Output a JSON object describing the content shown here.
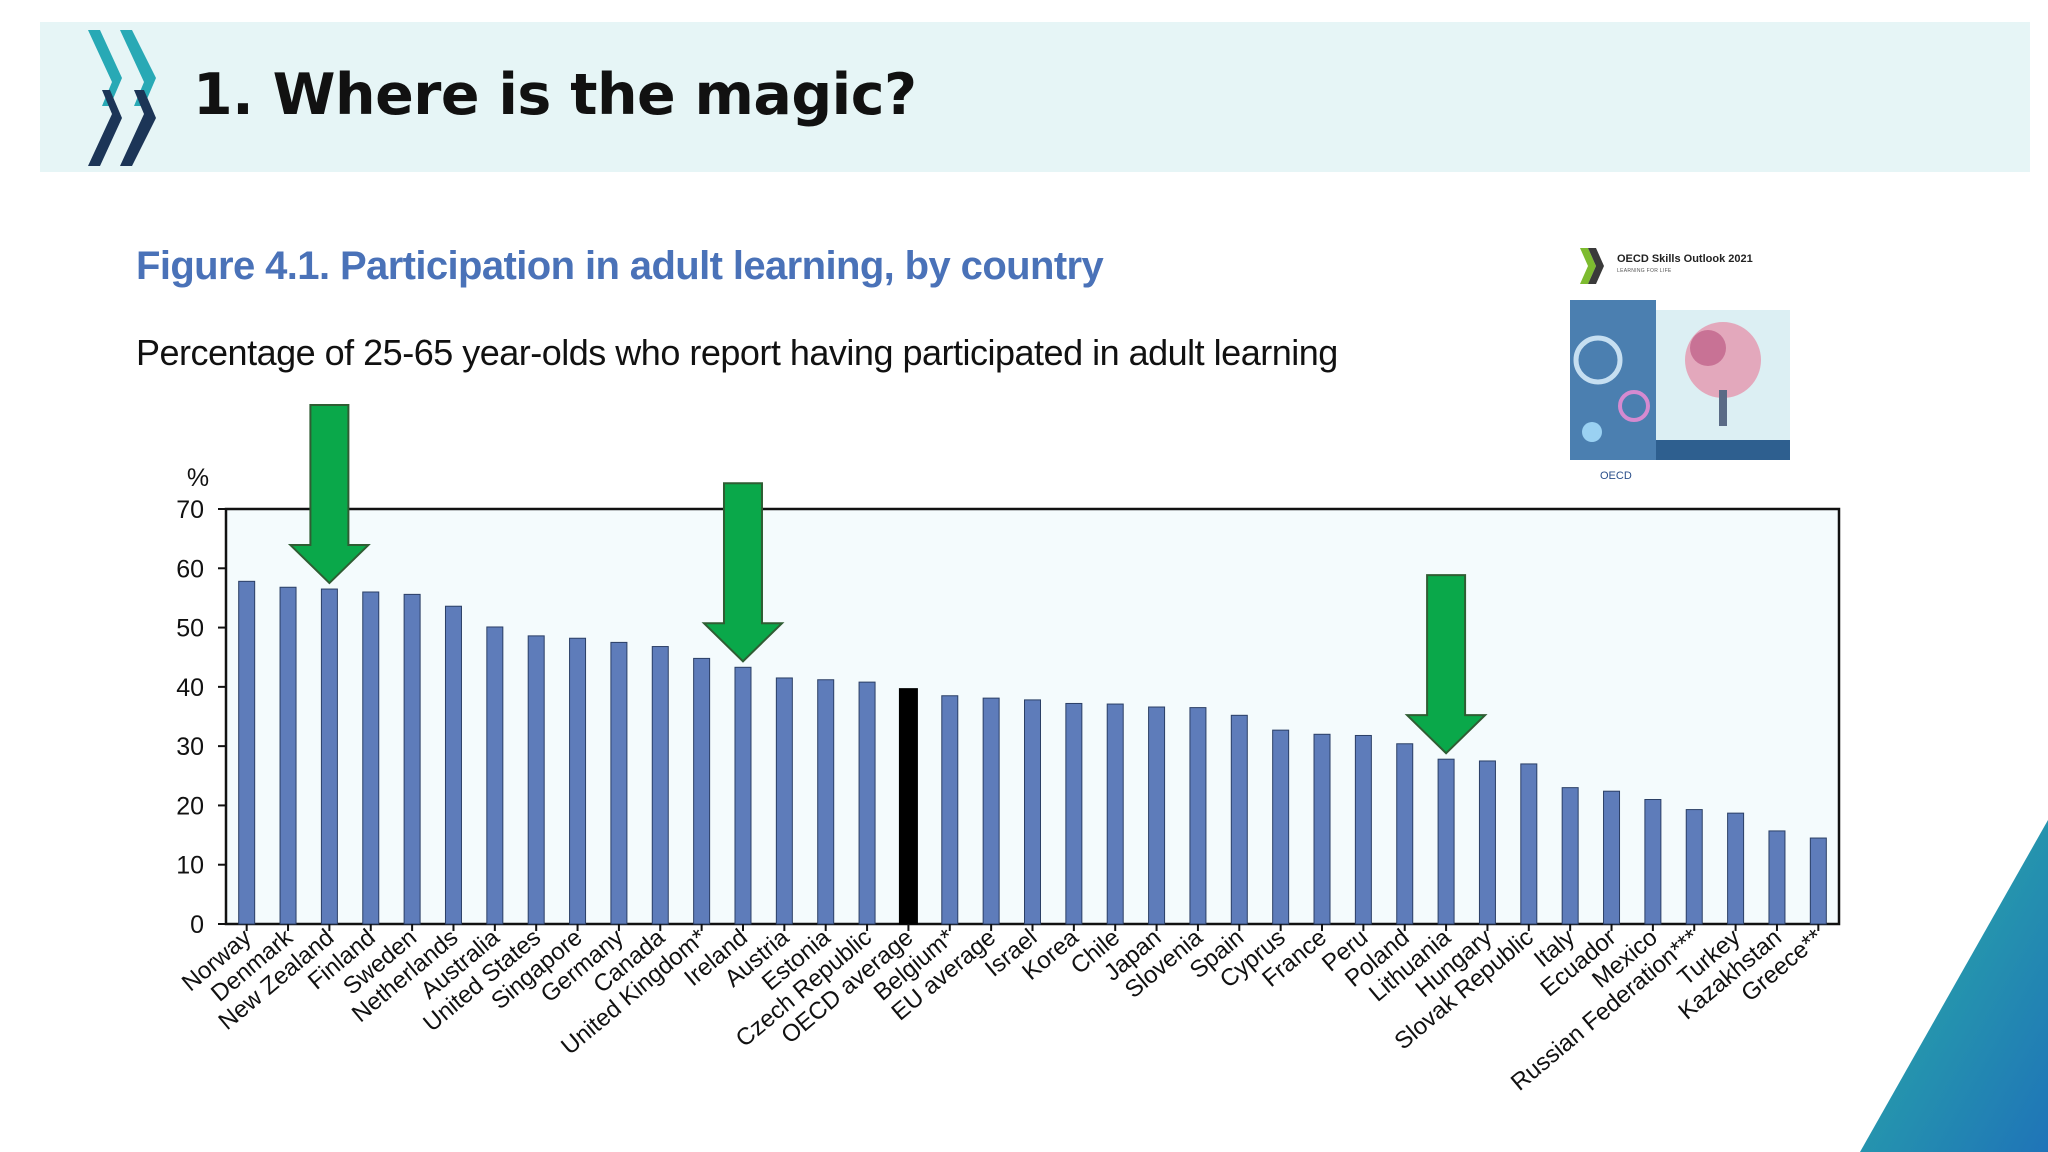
{
  "slide": {
    "title": "1. Where is the magic?"
  },
  "figure": {
    "title": "Figure 4.1. Participation in adult learning, by country",
    "subtitle": "Percentage of 25-65 year-olds who report having participated in adult learning"
  },
  "cover": {
    "title": "OECD Skills Outlook 2021",
    "tagline": "LEARNING FOR LIFE",
    "publisher": "OECD"
  },
  "colors": {
    "bar": "#5e7cba",
    "highlight_bar": "#000000",
    "arrow": "#0aa84a",
    "title_blue": "#4a72b8",
    "header_band": "#e6f5f6",
    "chart_bg": "#f4fbfd"
  },
  "chart_data": {
    "type": "bar",
    "ylabel": "%",
    "ylim": [
      0,
      70
    ],
    "yticks": [
      0,
      10,
      20,
      30,
      40,
      50,
      60,
      70
    ],
    "grid": false,
    "categories": [
      "Norway",
      "Denmark",
      "New Zealand",
      "Finland",
      "Sweden",
      "Netherlands",
      "Australia",
      "United States",
      "Singapore",
      "Germany",
      "Canada",
      "United Kingdom*",
      "Ireland",
      "Austria",
      "Estonia",
      "Czech Republic",
      "OECD average",
      "Belgium*",
      "EU average",
      "Israel",
      "Korea",
      "Chile",
      "Japan",
      "Slovenia",
      "Spain",
      "Cyprus",
      "France",
      "Peru",
      "Poland",
      "Lithuania",
      "Hungary",
      "Slovak Republic",
      "Italy",
      "Ecuador",
      "Mexico",
      "Russian Federation***",
      "Turkey",
      "Kazakhstan",
      "Greece**"
    ],
    "values": [
      57.8,
      56.8,
      56.5,
      56.0,
      55.6,
      53.6,
      50.1,
      48.6,
      48.2,
      47.5,
      46.8,
      44.8,
      43.3,
      41.5,
      41.2,
      40.8,
      39.7,
      38.5,
      38.1,
      37.8,
      37.2,
      37.1,
      36.6,
      36.5,
      35.2,
      32.7,
      32.0,
      31.8,
      30.4,
      27.8,
      27.5,
      27.0,
      23.0,
      22.4,
      21.0,
      19.3,
      18.7,
      15.7,
      14.5
    ],
    "highlighted": [
      "OECD average"
    ],
    "arrows_over": [
      "New Zealand",
      "Ireland",
      "Lithuania"
    ]
  }
}
